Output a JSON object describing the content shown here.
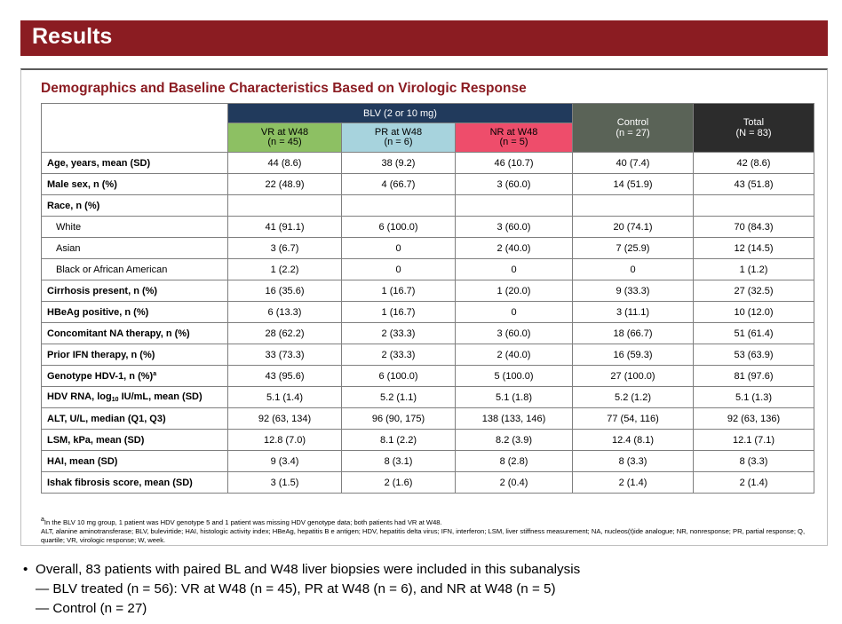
{
  "header": {
    "title": "Results"
  },
  "panel": {
    "title": "Demographics and Baseline Characteristics Based on Virologic Response",
    "table": {
      "group_header": "BLV (2 or 10 mg)",
      "columns": [
        {
          "line1": "VR at W48",
          "line2": "(n = 45)"
        },
        {
          "line1": "PR at W48",
          "line2": "(n = 6)"
        },
        {
          "line1": "NR at W48",
          "line2": "(n = 5)"
        },
        {
          "line1": "Control",
          "line2": "(n = 27)"
        },
        {
          "line1": "Total",
          "line2": "(N = 83)"
        }
      ],
      "rows": [
        {
          "label": "Age, years, mean (SD)",
          "values": [
            "44 (8.6)",
            "38 (9.2)",
            "46 (10.7)",
            "40 (7.4)",
            "42 (8.6)"
          ]
        },
        {
          "label": "Male sex, n (%)",
          "values": [
            "22 (48.9)",
            "4 (66.7)",
            "3 (60.0)",
            "14 (51.9)",
            "43 (51.8)"
          ]
        },
        {
          "label": "Race, n (%)",
          "values": [
            "",
            "",
            "",
            "",
            ""
          ]
        },
        {
          "label": "White",
          "values": [
            "41 (91.1)",
            "6 (100.0)",
            "3 (60.0)",
            "20 (74.1)",
            "70 (84.3)"
          ]
        },
        {
          "label": "Asian",
          "values": [
            "3 (6.7)",
            "0",
            "2 (40.0)",
            "7 (25.9)",
            "12 (14.5)"
          ]
        },
        {
          "label": "Black or African American",
          "values": [
            "1 (2.2)",
            "0",
            "0",
            "0",
            "1 (1.2)"
          ]
        },
        {
          "label": "Cirrhosis present, n (%)",
          "values": [
            "16 (35.6)",
            "1 (16.7)",
            "1 (20.0)",
            "9 (33.3)",
            "27 (32.5)"
          ]
        },
        {
          "label": "HBeAg positive, n (%)",
          "values": [
            "6 (13.3)",
            "1 (16.7)",
            "0",
            "3 (11.1)",
            "10 (12.0)"
          ]
        },
        {
          "label": "Concomitant NA therapy, n (%)",
          "values": [
            "28 (62.2)",
            "2 (33.3)",
            "3 (60.0)",
            "18 (66.7)",
            "51 (61.4)"
          ]
        },
        {
          "label": "Prior IFN therapy, n (%)",
          "values": [
            "33 (73.3)",
            "2 (33.3)",
            "2 (40.0)",
            "16 (59.3)",
            "53 (63.9)"
          ]
        },
        {
          "label": "Genotype HDV-1, n (%)",
          "label_sup": "a",
          "values": [
            "43 (95.6)",
            "6 (100.0)",
            "5 (100.0)",
            "27 (100.0)",
            "81 (97.6)"
          ]
        },
        {
          "label_pre": "HDV RNA, log",
          "label_sub": "10",
          "label_post": " IU/mL, mean (SD)",
          "values": [
            "5.1 (1.4)",
            "5.2 (1.1)",
            "5.1 (1.8)",
            "5.2 (1.2)",
            "5.1 (1.3)"
          ]
        },
        {
          "label": "ALT, U/L, median (Q1, Q3)",
          "values": [
            "92 (63, 134)",
            "96 (90, 175)",
            "138 (133, 146)",
            "77 (54, 116)",
            "92 (63, 136)"
          ]
        },
        {
          "label": "LSM, kPa, mean (SD)",
          "values": [
            "12.8 (7.0)",
            "8.1 (2.2)",
            "8.2 (3.9)",
            "12.4 (8.1)",
            "12.1 (7.1)"
          ]
        },
        {
          "label": "HAI, mean (SD)",
          "values": [
            "9 (3.4)",
            "8 (3.1)",
            "8 (2.8)",
            "8 (3.3)",
            "8 (3.3)"
          ]
        },
        {
          "label": "Ishak fibrosis score, mean (SD)",
          "values": [
            "3 (1.5)",
            "2 (1.6)",
            "2 (0.4)",
            "2 (1.4)",
            "2 (1.4)"
          ]
        }
      ]
    },
    "footnote_a_mark": "a",
    "footnote_a": "In the BLV 10 mg group, 1 patient was HDV genotype 5 and 1 patient was missing HDV genotype data; both patients had VR at W48.",
    "footnote_abbrev": "ALT, alanine aminotransferase; BLV, bulevirtide; HAI, histologic activity index; HBeAg, hepatitis B e antigen; HDV, hepatitis delta virus; IFN, interferon; LSM, liver stiffness measurement; NA, nucleos(t)ide analogue; NR, nonresponse; PR, partial response; Q, quartile; VR, virologic response; W, week."
  },
  "bullets": {
    "main_marker": "•",
    "main": "Overall, 83 patients with paired BL and W48 liver biopsies were included in this subanalysis",
    "sub": [
      "— BLV treated (n = 56): VR at W48 (n = 45), PR at W48 (n = 6), and NR at W48 (n = 5)",
      "— Control (n = 27)"
    ]
  },
  "colors": {
    "title_bar": "#8b1c22",
    "blv_header": "#213a5c",
    "vr": "#8dc063",
    "pr": "#a7d3dd",
    "nr": "#ee4d6b",
    "control": "#5a6357",
    "total": "#2c2c2c"
  }
}
